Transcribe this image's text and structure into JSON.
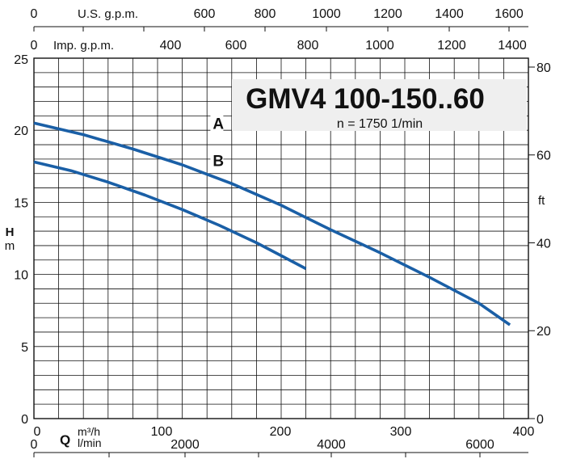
{
  "chart_data": {
    "type": "line",
    "title": "GMV4 100-150..60",
    "subtitle": "n = 1750 1/min",
    "xlabel_q": "Q",
    "xlabel_m3h": "m³/h",
    "xlabel_lmin": "l/min",
    "ylabel_h": "H",
    "ylabel_m": "m",
    "ylabel_right": "ft",
    "top_axis_us_label": "U.S. g.p.m.",
    "top_axis_imp_label": "Imp. g.p.m.",
    "xlim_m3h": [
      0,
      400
    ],
    "ylim_m": [
      0,
      25
    ],
    "grid": true,
    "ticks": {
      "m3h": [
        "0",
        "100",
        "200",
        "300",
        "400"
      ],
      "lmin": [
        "0",
        "2000",
        "4000",
        "6000"
      ],
      "usgpm": [
        "0",
        "600",
        "800",
        "1000",
        "1200",
        "1400",
        "1600"
      ],
      "impgpm": [
        "0",
        "400",
        "600",
        "800",
        "1000",
        "1200",
        "1400"
      ],
      "h_m": [
        "0",
        "5",
        "10",
        "15",
        "20",
        "25"
      ],
      "h_ft": [
        "0",
        "20",
        "40",
        "60",
        "80"
      ]
    },
    "series": [
      {
        "name": "A",
        "x": [
          0,
          40,
          80,
          120,
          160,
          200,
          240,
          280,
          320,
          360,
          385
        ],
        "y": [
          20.5,
          19.7,
          18.7,
          17.6,
          16.3,
          14.8,
          13.1,
          11.5,
          9.8,
          8.0,
          6.5
        ]
      },
      {
        "name": "B",
        "x": [
          0,
          30,
          60,
          90,
          120,
          150,
          180,
          200,
          220
        ],
        "y": [
          17.8,
          17.2,
          16.4,
          15.5,
          14.5,
          13.4,
          12.2,
          11.3,
          10.4
        ]
      }
    ]
  }
}
